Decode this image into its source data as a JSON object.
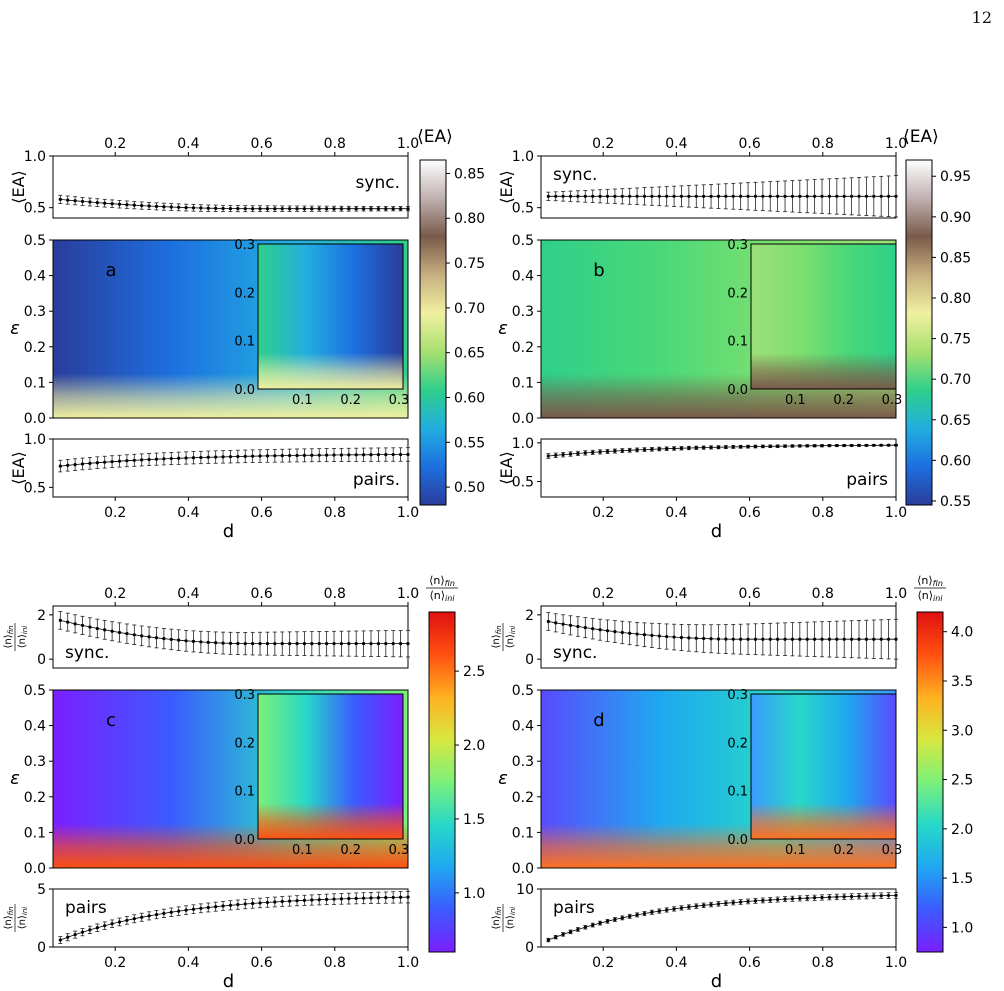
{
  "page_number": "12",
  "colors": {
    "cmap_EA": [
      "#2a3d9a",
      "#1d6fe0",
      "#22aee0",
      "#2fcf8a",
      "#a8e070",
      "#f0f0a0",
      "#c8b080",
      "#7a5a4a",
      "#c0b0b0",
      "#ffffff"
    ],
    "cmap_n": [
      "#7b1fff",
      "#3b5bff",
      "#1fa8f0",
      "#27d8c8",
      "#7cf07a",
      "#d8e840",
      "#ffb020",
      "#ff5010",
      "#e01010"
    ]
  },
  "chart_data": [
    {
      "type": "heatmap",
      "panel_label": "a",
      "xlabel": "d",
      "ylabel": "ε",
      "xlim": [
        0.03,
        1.0
      ],
      "ylim": [
        0.0,
        0.5
      ],
      "x_ticks": [
        "0.2",
        "0.4",
        "0.6",
        "0.8",
        "1.0"
      ],
      "y_ticks": [
        "0.0",
        "0.1",
        "0.2",
        "0.3",
        "0.4",
        "0.5"
      ],
      "colorbar": {
        "label": "⟨EA⟩",
        "range": [
          0.48,
          0.865
        ],
        "ticks": [
          "0.50",
          "0.55",
          "0.60",
          "0.65",
          "0.70",
          "0.75",
          "0.80",
          "0.85"
        ]
      },
      "inset": {
        "x_ticks": [
          "0.1",
          "0.2",
          "0.3"
        ],
        "y_ticks": [
          "0.0",
          "0.1",
          "0.2",
          "0.3"
        ]
      },
      "top_strip": {
        "label": "sync.",
        "ylabel": "⟨EA⟩",
        "y_ticks": [
          "0.5",
          "1.0"
        ],
        "ylim": [
          0.4,
          1.0
        ],
        "series": {
          "start": 0.58,
          "end": 0.49,
          "shape": "decay",
          "err_start": 0.04,
          "err_end": 0.02
        }
      },
      "bottom_strip": {
        "label": "pairs.",
        "ylabel": "⟨EA⟩",
        "y_ticks": [
          "0.5",
          "1.0"
        ],
        "ylim": [
          0.4,
          1.0
        ],
        "series": {
          "start": 0.72,
          "end": 0.84,
          "shape": "rise",
          "err_start": 0.06,
          "err_end": 0.07
        }
      }
    },
    {
      "type": "heatmap",
      "panel_label": "b",
      "xlabel": "d",
      "ylabel": "ε",
      "xlim": [
        0.03,
        1.0
      ],
      "ylim": [
        0.0,
        0.5
      ],
      "x_ticks": [
        "0.2",
        "0.4",
        "0.6",
        "0.8",
        "1.0"
      ],
      "y_ticks": [
        "0.0",
        "0.1",
        "0.2",
        "0.3",
        "0.4",
        "0.5"
      ],
      "colorbar": {
        "label": "⟨EA⟩",
        "range": [
          0.545,
          0.97
        ],
        "ticks": [
          "0.55",
          "0.60",
          "0.65",
          "0.70",
          "0.75",
          "0.80",
          "0.85",
          "0.90",
          "0.95"
        ]
      },
      "inset": {
        "x_ticks": [
          "0.1",
          "0.2",
          "0.3"
        ],
        "y_ticks": [
          "0.0",
          "0.1",
          "0.2",
          "0.3"
        ]
      },
      "top_strip": {
        "label": "sync.",
        "ylabel": "⟨EA⟩",
        "y_ticks": [
          "0.5",
          "1.0"
        ],
        "ylim": [
          0.4,
          1.0
        ],
        "series": {
          "start": 0.61,
          "end": 0.61,
          "shape": "flat",
          "err_start": 0.04,
          "err_end": 0.2
        }
      },
      "bottom_strip": {
        "label": "pairs",
        "ylabel": "⟨EA⟩",
        "y_ticks": [
          "0.5",
          "1.0"
        ],
        "ylim": [
          0.3,
          1.05
        ],
        "series": {
          "start": 0.83,
          "end": 0.97,
          "shape": "rise",
          "err_start": 0.03,
          "err_end": 0.01
        }
      }
    },
    {
      "type": "heatmap",
      "panel_label": "c",
      "xlabel": "d",
      "ylabel": "ε",
      "xlim": [
        0.03,
        1.0
      ],
      "ylim": [
        0.0,
        0.5
      ],
      "x_ticks": [
        "0.2",
        "0.4",
        "0.6",
        "0.8",
        "1.0"
      ],
      "y_ticks": [
        "0.0",
        "0.1",
        "0.2",
        "0.3",
        "0.4",
        "0.5"
      ],
      "colorbar": {
        "label": "⟨n⟩fin / ⟨n⟩ini",
        "range": [
          0.6,
          2.9
        ],
        "ticks": [
          "1.0",
          "1.5",
          "2.0",
          "2.5"
        ]
      },
      "inset": {
        "x_ticks": [
          "0.1",
          "0.2",
          "0.3"
        ],
        "y_ticks": [
          "0.0",
          "0.1",
          "0.2",
          "0.3"
        ]
      },
      "top_strip": {
        "label": "sync.",
        "ylabel": "⟨n⟩fin / ⟨n⟩ini",
        "y_ticks": [
          "0",
          "2"
        ],
        "ylim": [
          -0.4,
          2.4
        ],
        "series": {
          "start": 1.75,
          "end": 0.7,
          "shape": "decay",
          "err_start": 0.4,
          "err_end": 0.6
        }
      },
      "bottom_strip": {
        "label": "pairs",
        "ylabel": "⟨n⟩fin / ⟨n⟩ini",
        "y_ticks": [
          "0",
          "5"
        ],
        "ylim": [
          0,
          5
        ],
        "series": {
          "start": 0.6,
          "end": 4.3,
          "shape": "rise",
          "err_start": 0.3,
          "err_end": 0.5
        }
      }
    },
    {
      "type": "heatmap",
      "panel_label": "d",
      "xlabel": "d",
      "ylabel": "ε",
      "xlim": [
        0.03,
        1.0
      ],
      "ylim": [
        0.0,
        0.5
      ],
      "x_ticks": [
        "0.2",
        "0.4",
        "0.6",
        "0.8",
        "1.0"
      ],
      "y_ticks": [
        "0.0",
        "0.1",
        "0.2",
        "0.3",
        "0.4",
        "0.5"
      ],
      "colorbar": {
        "label": "⟨n⟩fin / ⟨n⟩ini",
        "range": [
          0.75,
          4.2
        ],
        "ticks": [
          "1.0",
          "1.5",
          "2.0",
          "2.5",
          "3.0",
          "3.5",
          "4.0"
        ]
      },
      "inset": {
        "x_ticks": [
          "0.1",
          "0.2",
          "0.3"
        ],
        "y_ticks": [
          "0.0",
          "0.1",
          "0.2",
          "0.3"
        ]
      },
      "top_strip": {
        "label": "sync.",
        "ylabel": "⟨n⟩fin / ⟨n⟩ini",
        "y_ticks": [
          "0",
          "2"
        ],
        "ylim": [
          -0.4,
          2.4
        ],
        "series": {
          "start": 1.7,
          "end": 0.9,
          "shape": "decay",
          "err_start": 0.4,
          "err_end": 0.9
        }
      },
      "bottom_strip": {
        "label": "pairs",
        "ylabel": "⟨n⟩fin / ⟨n⟩ini",
        "y_ticks": [
          "0",
          "10"
        ],
        "ylim": [
          0,
          10
        ],
        "series": {
          "start": 1.2,
          "end": 8.9,
          "shape": "rise",
          "err_start": 0.3,
          "err_end": 0.5
        }
      }
    }
  ]
}
